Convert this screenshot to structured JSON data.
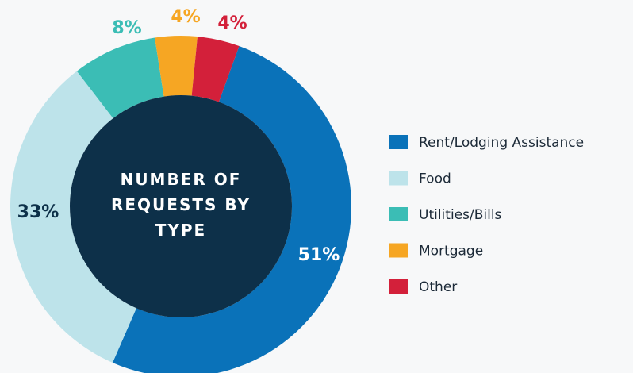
{
  "chart_data": {
    "type": "donut",
    "title": "NUMBER OF REQUESTS BY TYPE",
    "categories": [
      "Rent/Lodging Assistance",
      "Food",
      "Utilities/Bills",
      "Mortgage",
      "Other"
    ],
    "values": [
      51,
      33,
      8,
      4,
      4
    ],
    "value_labels": [
      "51%",
      "33%",
      "8%",
      "4%",
      "4%"
    ],
    "colors": [
      "#0a72b9",
      "#bde3ea",
      "#3bbdb5",
      "#f6a623",
      "#d3203a"
    ],
    "label_colors": [
      "#ffffff",
      "#0d3049",
      "#3bbdb5",
      "#f6a623",
      "#d3203a"
    ],
    "legend": "right"
  }
}
